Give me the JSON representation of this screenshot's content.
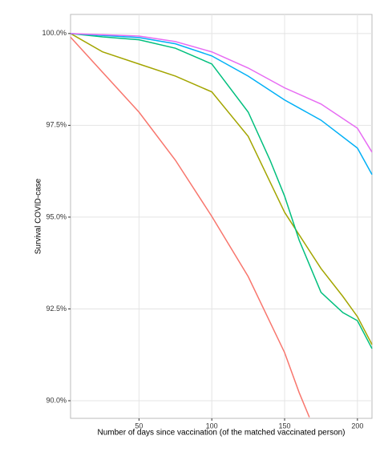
{
  "chart_data": {
    "type": "line",
    "y_label": "Survival COVID-case",
    "x_label": "Number of days since vaccination (of the matched vaccinated person)",
    "xlim": [
      3,
      210
    ],
    "ylim": [
      89.52,
      100.52
    ],
    "xticks": [
      50,
      100,
      150,
      200
    ],
    "yticks": [
      {
        "value": 90,
        "label": "90.0%"
      },
      {
        "value": 92.5,
        "label": "92.5%"
      },
      {
        "value": 95,
        "label": "95.0%"
      },
      {
        "value": 97.5,
        "label": "97.5%"
      },
      {
        "value": 100,
        "label": "100.0%"
      }
    ],
    "grid": true,
    "series": [
      {
        "color": "#F8766D",
        "x": [
          3,
          50,
          75,
          100,
          125,
          150,
          160,
          167
        ],
        "values": [
          99.9,
          97.86,
          96.55,
          95.02,
          93.38,
          91.31,
          90.22,
          89.55
        ]
      },
      {
        "color": "#A3A500",
        "x": [
          3,
          25,
          50,
          75,
          100,
          125,
          150,
          175,
          190,
          200,
          210
        ],
        "values": [
          100,
          99.5,
          99.17,
          98.84,
          98.41,
          97.2,
          95.13,
          93.6,
          92.84,
          92.29,
          91.53
        ]
      },
      {
        "color": "#00BF7D",
        "x": [
          3,
          25,
          50,
          75,
          100,
          125,
          140,
          150,
          160,
          175,
          190,
          200,
          210
        ],
        "values": [
          100,
          99.91,
          99.83,
          99.6,
          99.17,
          97.86,
          96.55,
          95.57,
          94.37,
          92.95,
          92.4,
          92.18,
          91.42
        ]
      },
      {
        "color": "#00B0F6",
        "x": [
          3,
          50,
          75,
          100,
          125,
          150,
          175,
          200,
          210
        ],
        "values": [
          100,
          99.89,
          99.72,
          99.39,
          98.84,
          98.19,
          97.64,
          96.88,
          96.16
        ]
      },
      {
        "color": "#E76BF3",
        "x": [
          3,
          50,
          75,
          100,
          125,
          150,
          175,
          200,
          210
        ],
        "values": [
          100,
          99.93,
          99.78,
          99.5,
          99.06,
          98.52,
          98.08,
          97.42,
          96.77
        ]
      }
    ]
  }
}
